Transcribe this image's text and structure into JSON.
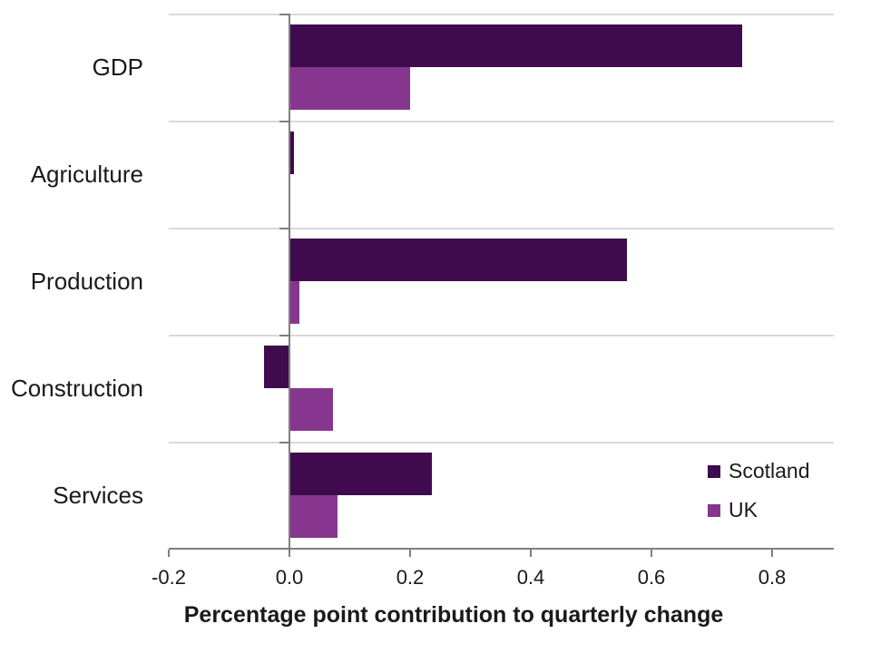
{
  "chart_data": {
    "type": "bar",
    "orientation": "horizontal",
    "title": "",
    "xlabel": "Percentage point contribution to quarterly change",
    "ylabel": "",
    "categories": [
      "GDP",
      "Agriculture",
      "Production",
      "Construction",
      "Services"
    ],
    "series": [
      {
        "name": "Scotland",
        "color": "#3F0B4E",
        "values": [
          0.75,
          0.007,
          0.56,
          -0.042,
          0.236
        ]
      },
      {
        "name": "UK",
        "color": "#87368F",
        "values": [
          0.2,
          0.002,
          0.016,
          0.072,
          0.08
        ]
      }
    ],
    "x_ticks": [
      "-0.2",
      "0.0",
      "0.2",
      "0.4",
      "0.6",
      "0.8"
    ],
    "xlim": [
      -0.2,
      0.9
    ],
    "grid": "category-separator-lines",
    "gridline_color": "#D9D9D9",
    "axis_color": "#7F7F7F",
    "legend_position": "inside-right-services-row"
  }
}
